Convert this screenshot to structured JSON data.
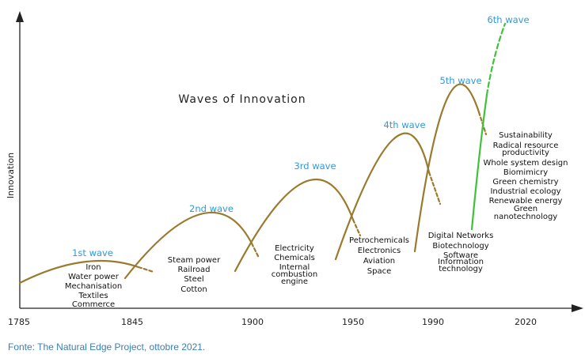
{
  "title": "Waves of Innovation",
  "ylabel": "Innovation",
  "x_ticks": [
    "1785",
    "1845",
    "1900",
    "1950",
    "1990",
    "2020"
  ],
  "waves": [
    {
      "label": "1st wave",
      "color": "#9a7a2e",
      "items": [
        "Iron",
        "Water power",
        "Mechanisation",
        "Textiles",
        "Commerce"
      ]
    },
    {
      "label": "2nd wave",
      "color": "#9a7a2e",
      "items": [
        "Steam power",
        "Railroad",
        "Steel",
        "Cotton"
      ]
    },
    {
      "label": "3rd wave",
      "color": "#9a7a2e",
      "items": [
        "Electricity",
        "Chemicals",
        "Internal",
        "combustion",
        "engine"
      ]
    },
    {
      "label": "4th wave",
      "color": "#9a7a2e",
      "items": [
        "Petrochemicals",
        "Electronics",
        "Aviation",
        "Space"
      ]
    },
    {
      "label": "5th wave",
      "color": "#9a7a2e",
      "items": [
        "Digital Networks",
        "Biotechnology",
        "Software",
        "Information",
        "technology"
      ]
    },
    {
      "label": "6th wave",
      "color": "#3fc23a",
      "items": [
        "Sustainability",
        "Radical resource",
        "productivity",
        "Whole system design",
        "Biomimicry",
        "Green chemistry",
        "Industrial ecology",
        "Renewable energy",
        "Green",
        "nanotechnology"
      ]
    }
  ],
  "caption": "Fonte: The Natural Edge Project, ottobre 2021."
}
